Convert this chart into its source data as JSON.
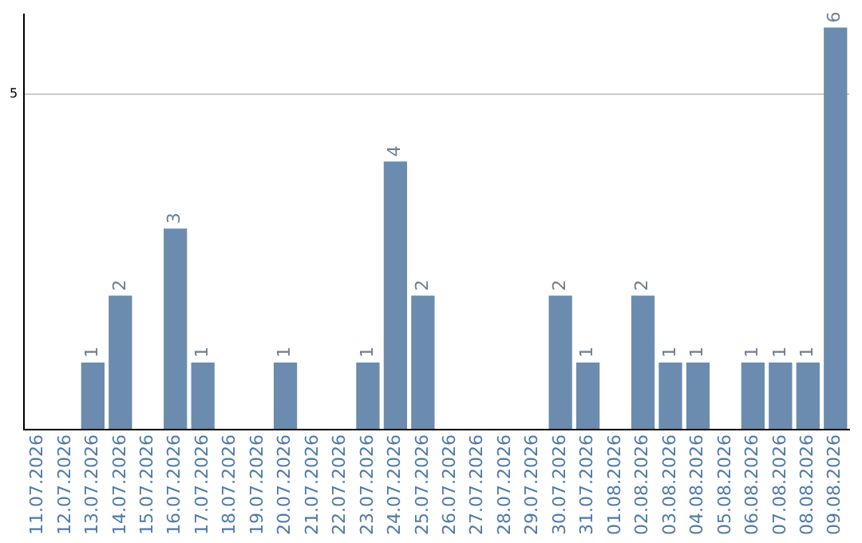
{
  "chart_data": {
    "type": "bar",
    "categories": [
      "11.07.2026",
      "12.07.2026",
      "13.07.2026",
      "14.07.2026",
      "15.07.2026",
      "16.07.2026",
      "17.07.2026",
      "18.07.2026",
      "19.07.2026",
      "20.07.2026",
      "21.07.2026",
      "22.07.2026",
      "23.07.2026",
      "24.07.2026",
      "25.07.2026",
      "26.07.2026",
      "27.07.2026",
      "28.07.2026",
      "29.07.2026",
      "30.07.2026",
      "31.07.2026",
      "01.08.2026",
      "02.08.2026",
      "03.08.2026",
      "04.08.2026",
      "05.08.2026",
      "06.08.2026",
      "07.08.2026",
      "08.08.2026",
      "09.08.2026"
    ],
    "values": [
      0,
      0,
      1,
      2,
      0,
      3,
      1,
      0,
      0,
      1,
      0,
      0,
      1,
      4,
      2,
      0,
      0,
      0,
      0,
      2,
      1,
      0,
      2,
      1,
      1,
      0,
      1,
      1,
      1,
      6
    ],
    "value_labels": [
      null,
      null,
      "1",
      "2",
      null,
      "3",
      "1",
      null,
      null,
      "1",
      null,
      null,
      "1",
      "4",
      "2",
      null,
      null,
      null,
      null,
      "2",
      "1",
      null,
      "2",
      "1",
      "1",
      null,
      "1",
      "1",
      "1",
      "6"
    ],
    "color": "#6b8cae",
    "ylim": [
      0,
      6.2
    ],
    "yticks": [
      {
        "value": 0,
        "label": null
      },
      5
    ],
    "grid": "y",
    "legend": false
  }
}
